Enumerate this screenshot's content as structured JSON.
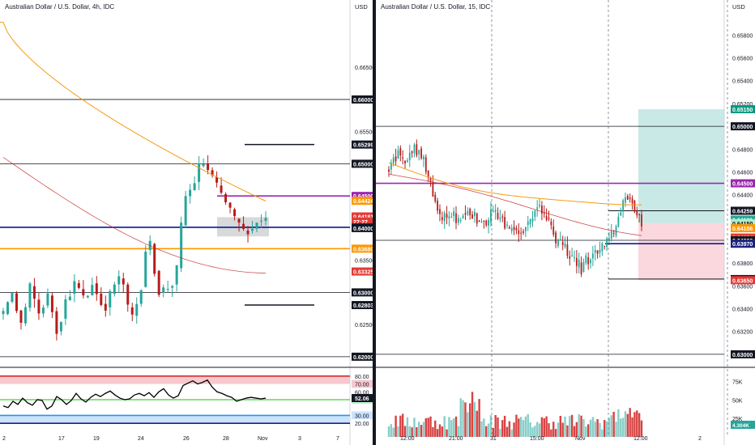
{
  "colors": {
    "up": "#26a69a",
    "down": "#b71c1c",
    "ema_orange": "#f39c12",
    "ma_red": "#c62828",
    "purple": "#9c27b0",
    "navy": "#0d1a8a",
    "rsi": "#000000"
  },
  "chart_data": [
    {
      "type": "candlestick",
      "title": "Australian Dollar / U.S. Dollar, 4h, IDC",
      "unit": "USD",
      "ylim": [
        0.6186,
        0.6732
      ],
      "x_ticks": [
        "2",
        "17",
        "19",
        "24",
        "26",
        "28",
        "Nov",
        "3",
        "7"
      ],
      "y_ticks": [
        "0.66500",
        "0.66000",
        "0.65500",
        "0.65000",
        "0.64500",
        "0.64000",
        "0.63500",
        "0.63000",
        "0.62500",
        "0.62000"
      ],
      "price_labels": [
        {
          "text": "0.66000",
          "value": 0.66,
          "style": "black"
        },
        {
          "text": "0.65299",
          "value": 0.65299,
          "style": "black"
        },
        {
          "text": "0.65000",
          "value": 0.65,
          "style": "black"
        },
        {
          "text": "0.64500",
          "value": 0.645,
          "style": "purple"
        },
        {
          "text": "0.64424",
          "value": 0.64424,
          "style": "orange"
        },
        {
          "text": "0.64181",
          "value": 0.64181,
          "style": "red"
        },
        {
          "text": "27:27",
          "value": 0.64101,
          "style": "red"
        },
        {
          "text": "0.64012",
          "value": 0.64012,
          "style": "navy"
        },
        {
          "text": "0.64000",
          "value": 0.64,
          "style": "black"
        },
        {
          "text": "0.63680",
          "value": 0.6368,
          "style": "orange"
        },
        {
          "text": "0.63325",
          "value": 0.63325,
          "style": "red"
        },
        {
          "text": "0.63000",
          "value": 0.63,
          "style": "black"
        },
        {
          "text": "0.62803",
          "value": 0.62803,
          "style": "black"
        },
        {
          "text": "0.62000",
          "value": 0.62,
          "style": "black"
        }
      ],
      "levels": [
        {
          "value": 0.66,
          "color": "#131722",
          "span": "full"
        },
        {
          "value": 0.65,
          "color": "#131722",
          "span": "full"
        },
        {
          "value": 0.645,
          "color": "#9c27b0",
          "span": "partial"
        },
        {
          "value": 0.64012,
          "color": "#0d1a8a",
          "span": "full"
        },
        {
          "value": 0.6368,
          "color": "#ff9800",
          "span": "full"
        },
        {
          "value": 0.63,
          "color": "#131722",
          "span": "full"
        },
        {
          "value": 0.62,
          "color": "#131722",
          "span": "full"
        }
      ],
      "short_levels": [
        0.65299,
        0.62803
      ],
      "zone": [
        0.6387,
        0.6417
      ],
      "rsi": {
        "last_label": "52.06",
        "last": 52.06,
        "y_ticks": [
          "80.00",
          "70.00",
          "60.00",
          "50.00",
          "30.00",
          "20.00"
        ],
        "overbought": 70,
        "oversold": 30,
        "values": [
          42,
          40,
          48,
          44,
          52,
          46,
          43,
          50,
          49,
          38,
          42,
          54,
          50,
          44,
          49,
          58,
          51,
          47,
          53,
          57,
          54,
          58,
          61,
          56,
          52,
          50,
          51,
          56,
          58,
          55,
          59,
          53,
          60,
          64,
          56,
          52,
          55,
          68,
          71,
          74,
          70,
          72,
          75,
          66,
          60,
          58,
          55,
          53,
          48,
          50,
          52,
          53,
          52,
          51,
          52
        ]
      }
    },
    {
      "type": "candlestick",
      "title": "Australian Dollar / U.S. Dollar, 15, IDC",
      "unit": "USD",
      "ylim": [
        0.629,
        0.6598
      ],
      "x_ticks": [
        "12:00",
        "21:00",
        "31",
        "15:00",
        "Nov",
        "12:00",
        "2"
      ],
      "y_ticks": [
        "0.65800",
        "0.65600",
        "0.65400",
        "0.65200",
        "0.65000",
        "0.64800",
        "0.64600",
        "0.64400",
        "0.64200",
        "0.64000",
        "0.63800",
        "0.63600",
        "0.63400",
        "0.63200",
        "0.63000"
      ],
      "price_labels": [
        {
          "text": "0.65150",
          "value": 0.6515,
          "style": "green"
        },
        {
          "text": "0.65000",
          "value": 0.65,
          "style": "black"
        },
        {
          "text": "0.64500",
          "value": 0.645,
          "style": "purple"
        },
        {
          "text": "0.64259",
          "value": 0.64259,
          "style": "black"
        },
        {
          "text": "0.64181",
          "value": 0.64181,
          "style": "teal"
        },
        {
          "text": "12:27",
          "value": 0.64116,
          "style": "teal"
        },
        {
          "text": "0.64150",
          "value": 0.6415,
          "style": "lightgreen"
        },
        {
          "text": "0.64106",
          "value": 0.64106,
          "style": "orange"
        },
        {
          "text": "0.64024",
          "value": 0.64024,
          "style": "red"
        },
        {
          "text": "0.64000",
          "value": 0.64,
          "style": "black"
        },
        {
          "text": "0.63970",
          "value": 0.6397,
          "style": "navy"
        },
        {
          "text": "0.63660",
          "value": 0.6366,
          "style": "black"
        },
        {
          "text": "0.63650",
          "value": 0.6365,
          "style": "red"
        },
        {
          "text": "0.63000",
          "value": 0.63,
          "style": "black"
        }
      ],
      "levels": [
        {
          "value": 0.65,
          "color": "#131722",
          "span": "full"
        },
        {
          "value": 0.645,
          "color": "#9c27b0",
          "span": "full"
        },
        {
          "value": 0.64,
          "color": "#131722",
          "span": "full"
        },
        {
          "value": 0.6397,
          "color": "#0d1a8a",
          "span": "partial"
        },
        {
          "value": 0.63,
          "color": "#131722",
          "span": "full"
        }
      ],
      "short_levels": [
        0.64259,
        0.6366
      ],
      "position": {
        "entry": 0.6415,
        "target": 0.6515,
        "stop": 0.6365
      },
      "volume": {
        "last_label": "4.304K",
        "y_ticks": [
          "75K",
          "50K",
          "25K"
        ],
        "ymax": 90
      }
    }
  ]
}
